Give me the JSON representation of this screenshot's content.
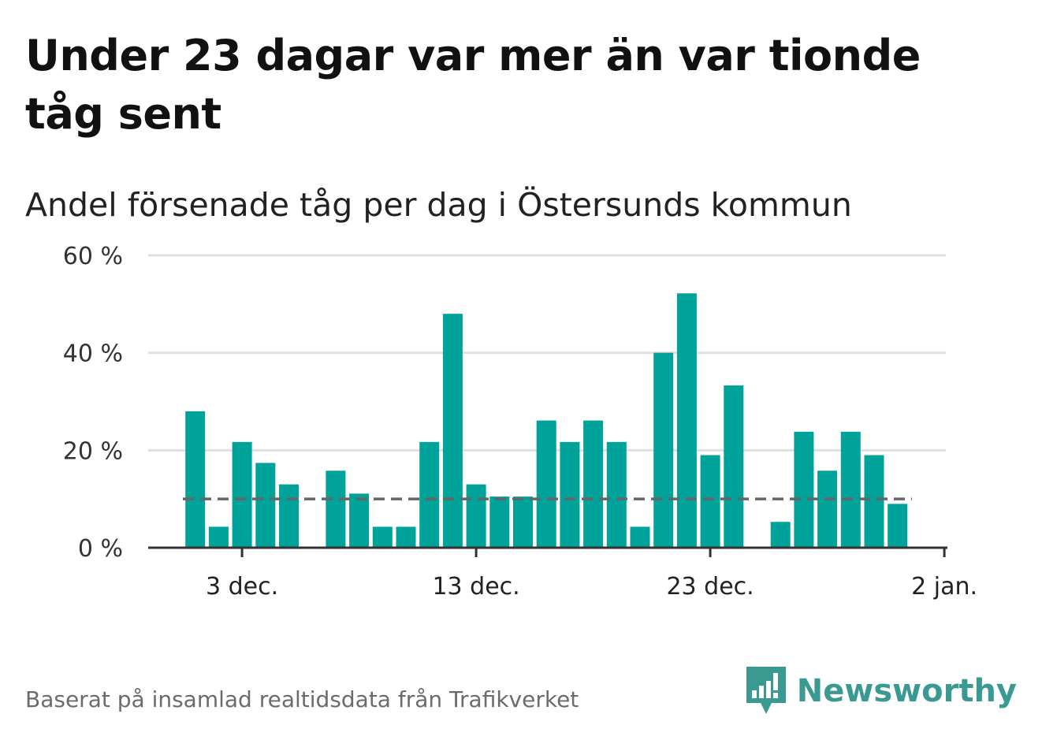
{
  "title": "Under 23 dagar var mer än var tionde tåg sent",
  "subtitle": "Andel försenade tåg per dag i Östersunds kommun",
  "source": "Baserat på insamlad realtidsdata från Trafikverket",
  "brand": {
    "name": "Newsworthy",
    "logo_icon": "bar-chart-logo-icon",
    "color": "#3a9a92"
  },
  "colors": {
    "bar": "#00a39a",
    "grid": "#e0e0e0",
    "axis": "#333333",
    "reference_line": "#666666"
  },
  "chart_data": {
    "type": "bar",
    "x_label_format": "day-month",
    "x": [
      "30 nov.",
      "1 dec.",
      "2 dec.",
      "3 dec.",
      "4 dec.",
      "5 dec.",
      "6 dec.",
      "7 dec.",
      "8 dec.",
      "9 dec.",
      "10 dec.",
      "11 dec.",
      "12 dec.",
      "13 dec.",
      "14 dec.",
      "15 dec.",
      "16 dec.",
      "17 dec.",
      "18 dec.",
      "19 dec.",
      "20 dec.",
      "21 dec.",
      "22 dec.",
      "23 dec.",
      "24 dec.",
      "25 dec.",
      "26 dec.",
      "27 dec.",
      "28 dec.",
      "29 dec.",
      "30 dec.",
      "31 dec.",
      "1 jan.",
      "2 jan."
    ],
    "values": [
      null,
      28,
      4.3,
      21.7,
      17.4,
      13,
      null,
      15.8,
      11.1,
      4.3,
      4.3,
      21.7,
      48,
      13,
      10.5,
      10.5,
      26.1,
      21.7,
      26.1,
      21.7,
      4.3,
      40,
      52.2,
      19,
      33.3,
      null,
      5.3,
      23.8,
      15.8,
      23.8,
      19,
      9,
      null,
      null
    ],
    "xticks": [
      "3 dec.",
      "13 dec.",
      "23 dec.",
      "2 jan."
    ],
    "yticks": [
      "0 %",
      "20 %",
      "40 %",
      "60 %"
    ],
    "ylim": [
      0,
      60
    ],
    "reference_line": 10,
    "grid": true,
    "legend": "none",
    "xlabel": "",
    "ylabel": ""
  }
}
